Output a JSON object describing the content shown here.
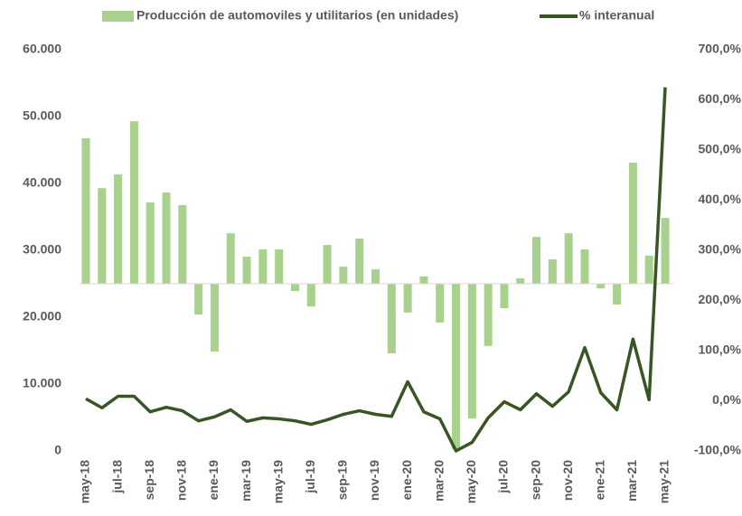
{
  "chart_data": {
    "type": "bar_line",
    "categories": [
      "may-18",
      null,
      "jul-18",
      null,
      "sep-18",
      null,
      "nov-18",
      null,
      "ene-19",
      null,
      "mar-19",
      null,
      "may-19",
      null,
      "jul-19",
      null,
      "sep-19",
      null,
      "nov-19",
      null,
      "ene-20",
      null,
      "mar-20",
      null,
      "may-20",
      null,
      "jul-20",
      null,
      "sep-20",
      null,
      "nov-20",
      null,
      "ene-21",
      null,
      "mar-21",
      null,
      "may-21"
    ],
    "series": [
      {
        "name": "Producción de automoviles y utilitarios (en unidades)",
        "type": "bar",
        "color": "#a9d18e",
        "values": [
          46750,
          39300,
          41350,
          49300,
          37150,
          38650,
          36750,
          20400,
          14850,
          32550,
          29050,
          30150,
          30150,
          23900,
          21600,
          30800,
          27550,
          31750,
          27150,
          14600,
          20700,
          26100,
          19200,
          300,
          4850,
          15700,
          21350,
          25800,
          32000,
          28650,
          32550,
          30150,
          24300,
          21900,
          43100,
          29200,
          34850
        ]
      },
      {
        "name": "% interanual",
        "type": "line",
        "axis": "y2",
        "color": "#375623",
        "values": [
          4,
          -14,
          9,
          9,
          -22,
          -13,
          -20,
          -40,
          -32,
          -18,
          -41,
          -34,
          -36,
          -40,
          -47,
          -38,
          -27,
          -20,
          -27,
          -31,
          38,
          -22,
          -36,
          -100,
          -83,
          -34,
          -2,
          -18,
          14,
          -11,
          18,
          106,
          16,
          -18,
          123,
          2,
          625
        ]
      }
    ],
    "x_axis_crosses": 25000,
    "ylim": [
      0,
      60000
    ],
    "yticks": [
      0,
      {
        "value": 10000,
        "label": "10.000"
      },
      {
        "value": 20000,
        "label": "20.000"
      },
      {
        "value": 30000,
        "label": "30.000"
      },
      {
        "value": 40000,
        "label": "40.000"
      },
      {
        "value": 50000,
        "label": "50.000"
      },
      {
        "value": 60000,
        "label": "60.000"
      }
    ],
    "y2lim": [
      -100,
      700
    ],
    "y2ticks": [
      {
        "value": -100,
        "label": "-100,0%"
      },
      {
        "value": 0,
        "label": "0,0%"
      },
      {
        "value": 100,
        "label": "100,0%"
      },
      {
        "value": 200,
        "label": "200,0%"
      },
      {
        "value": 300,
        "label": "300,0%"
      },
      {
        "value": 400,
        "label": "400,0%"
      },
      {
        "value": 500,
        "label": "500,0%"
      },
      {
        "value": 600,
        "label": "600,0%"
      },
      {
        "value": 700,
        "label": "700,0%"
      }
    ],
    "legend": "top"
  }
}
